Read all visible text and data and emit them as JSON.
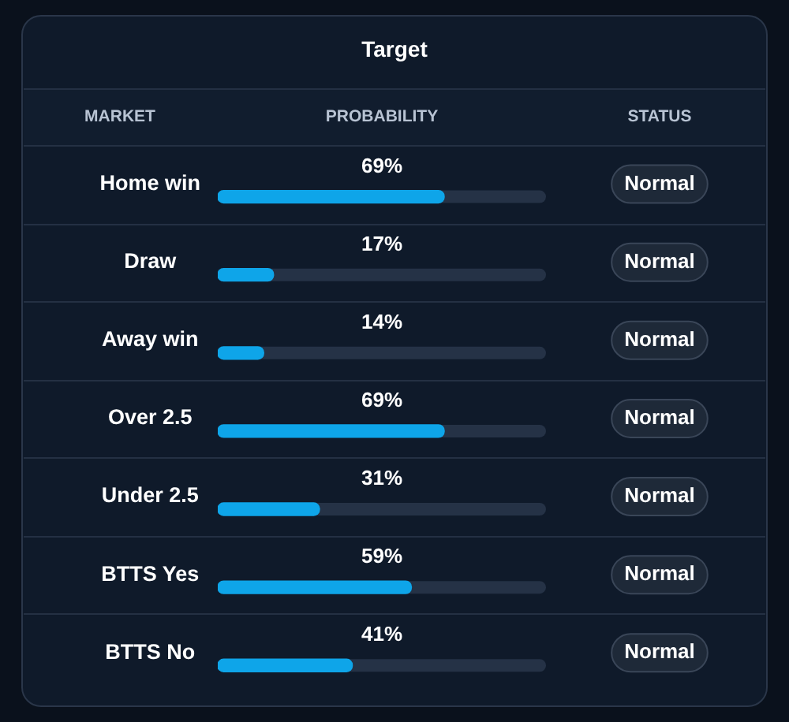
{
  "chart_data": {
    "type": "bar",
    "orientation": "horizontal",
    "title": "Target",
    "ylabel": "MARKET",
    "xlabel": "PROBABILITY",
    "categories": [
      "Home win",
      "Draw",
      "Away win",
      "Over 2.5",
      "Under 2.5",
      "BTTS Yes",
      "BTTS No"
    ],
    "values": [
      69,
      17,
      14,
      69,
      31,
      59,
      41
    ],
    "value_labels": [
      "69%",
      "17%",
      "14%",
      "69%",
      "31%",
      "59%",
      "41%"
    ],
    "color": "#0ea5e9",
    "xlim": [
      0,
      100
    ],
    "tick_labels": "y",
    "annotations": [
      "STATUS",
      "Normal",
      "Normal",
      "Normal",
      "Normal",
      "Normal",
      "Normal",
      "Normal"
    ]
  }
}
